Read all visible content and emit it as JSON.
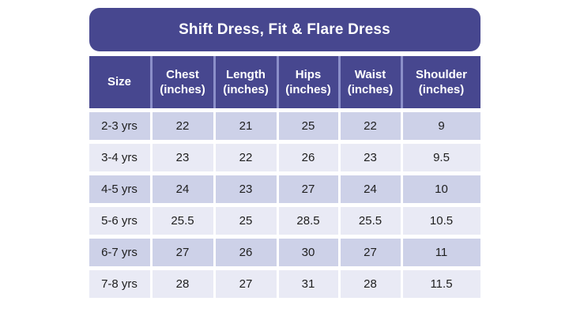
{
  "title": "Shift Dress, Fit & Flare Dress",
  "header_cells": [
    "Size",
    "Chest\n(inches)",
    "Length\n(inches)",
    "Hips\n(inches)",
    "Waist\n(inches)",
    "Shoulder\n(inches)"
  ],
  "chart_data": {
    "type": "table",
    "title": "Shift Dress, Fit & Flare Dress",
    "columns": [
      "Size",
      "Chest (inches)",
      "Length (inches)",
      "Hips (inches)",
      "Waist (inches)",
      "Shoulder (inches)"
    ],
    "rows": [
      [
        "2-3 yrs",
        "22",
        "21",
        "25",
        "22",
        "9"
      ],
      [
        "3-4 yrs",
        "23",
        "22",
        "26",
        "23",
        "9.5"
      ],
      [
        "4-5 yrs",
        "24",
        "23",
        "27",
        "24",
        "10"
      ],
      [
        "5-6 yrs",
        "25.5",
        "25",
        "28.5",
        "25.5",
        "10.5"
      ],
      [
        "6-7 yrs",
        "27",
        "26",
        "30",
        "27",
        "11"
      ],
      [
        "7-8 yrs",
        "28",
        "27",
        "31",
        "28",
        "11.5"
      ]
    ]
  },
  "colors": {
    "header_bg": "#47478F",
    "header_divider": "#8B8FC9",
    "row_odd": "#CDD1E8",
    "row_even": "#E9EAF5",
    "text_dark": "#202020",
    "header_text": "#FFFFFF",
    "page_bg": "#FFFFFF"
  }
}
